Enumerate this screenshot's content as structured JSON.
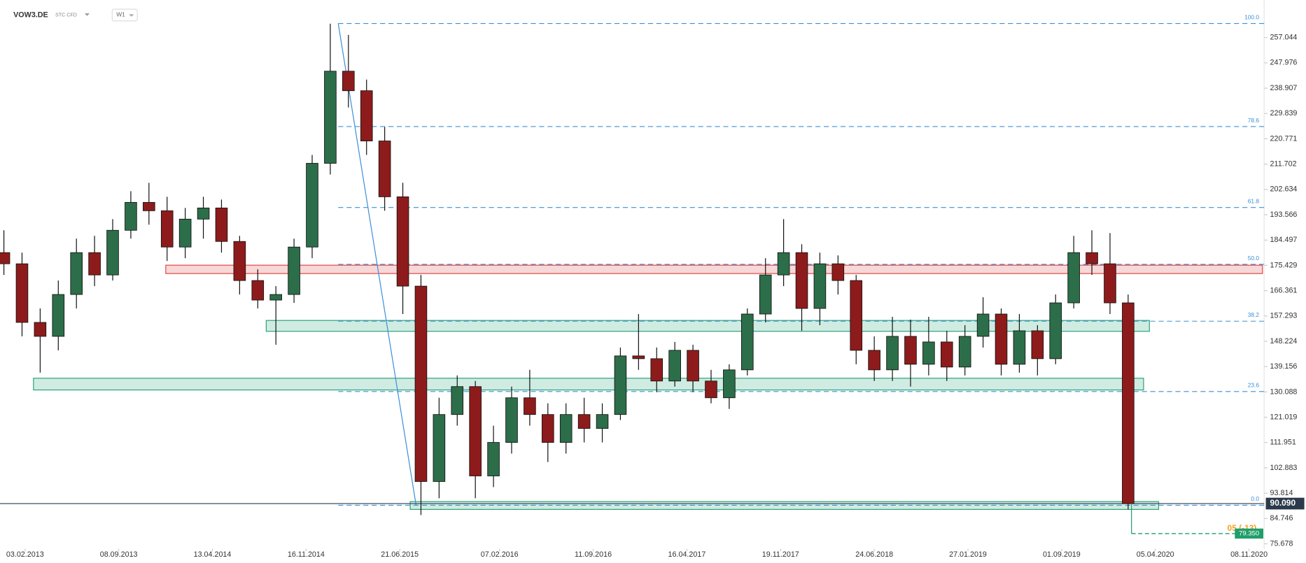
{
  "chart_data": {
    "type": "candlestick",
    "title": "VOW3.DE",
    "subtitle": "STC CFD",
    "timeframe": "W1",
    "x": [
      "16.12.2012",
      "27.01.2013",
      "10.03.2013",
      "21.04.2013",
      "02.06.2013",
      "14.07.2013",
      "25.08.2013",
      "06.10.2013",
      "17.11.2013",
      "29.12.2013",
      "09.02.2014",
      "23.03.2014",
      "04.05.2014",
      "15.06.2014",
      "27.07.2014",
      "07.09.2014",
      "19.10.2014",
      "30.11.2014",
      "11.01.2015",
      "22.02.2015",
      "05.04.2015",
      "17.05.2015",
      "28.06.2015",
      "09.08.2015",
      "20.09.2015",
      "01.11.2015",
      "13.12.2015",
      "24.01.2016",
      "06.03.2016",
      "17.04.2016",
      "29.05.2016",
      "10.07.2016",
      "21.08.2016",
      "02.10.2016",
      "13.11.2016",
      "25.12.2016",
      "05.02.2017",
      "19.03.2017",
      "30.04.2017",
      "11.06.2017",
      "23.07.2017",
      "03.09.2017",
      "15.10.2017",
      "26.11.2017",
      "07.01.2018",
      "18.02.2018",
      "01.04.2018",
      "13.05.2018",
      "24.06.2018",
      "05.08.2018",
      "16.09.2018",
      "28.10.2018",
      "09.12.2018",
      "20.01.2019",
      "03.03.2019",
      "14.04.2019",
      "26.05.2019",
      "07.07.2019",
      "18.08.2019",
      "29.09.2019",
      "10.11.2019",
      "22.12.2019",
      "02.02.2020"
    ],
    "open": [
      180,
      176,
      155,
      150,
      165,
      180,
      172,
      188,
      198,
      195,
      182,
      192,
      196,
      184,
      170,
      163,
      165,
      182,
      212,
      245,
      238,
      220,
      200,
      168,
      98,
      122,
      132,
      100,
      112,
      128,
      122,
      112,
      122,
      117,
      122,
      143,
      142,
      134,
      145,
      134,
      128,
      138,
      158,
      172,
      180,
      160,
      176,
      170,
      145,
      138,
      150,
      140,
      148,
      139,
      150,
      158,
      140,
      152,
      142,
      162,
      180,
      176,
      162
    ],
    "high": [
      188,
      180,
      160,
      170,
      185,
      186,
      192,
      202,
      205,
      200,
      196,
      200,
      199,
      186,
      174,
      168,
      185,
      215,
      262,
      258,
      242,
      225,
      205,
      172,
      128,
      136,
      134,
      118,
      132,
      138,
      126,
      126,
      128,
      126,
      146,
      158,
      146,
      148,
      147,
      138,
      140,
      160,
      178,
      192,
      183,
      180,
      179,
      172,
      150,
      157,
      156,
      157,
      152,
      154,
      164,
      160,
      158,
      154,
      165,
      186,
      188,
      187,
      165
    ],
    "low": [
      172,
      150,
      137,
      145,
      160,
      168,
      170,
      185,
      190,
      177,
      178,
      185,
      180,
      165,
      160,
      147,
      162,
      178,
      208,
      232,
      215,
      195,
      158,
      86,
      92,
      118,
      92,
      96,
      108,
      118,
      105,
      108,
      112,
      112,
      120,
      138,
      130,
      132,
      130,
      126,
      124,
      136,
      155,
      168,
      152,
      154,
      165,
      140,
      134,
      134,
      132,
      136,
      134,
      136,
      146,
      136,
      137,
      136,
      140,
      160,
      172,
      158,
      88
    ],
    "close": [
      176,
      155,
      150,
      165,
      180,
      172,
      188,
      198,
      195,
      182,
      192,
      196,
      184,
      170,
      163,
      165,
      182,
      212,
      245,
      238,
      220,
      200,
      168,
      98,
      122,
      132,
      100,
      112,
      128,
      122,
      112,
      122,
      117,
      122,
      143,
      142,
      134,
      145,
      134,
      128,
      138,
      158,
      172,
      180,
      160,
      176,
      170,
      145,
      138,
      150,
      140,
      148,
      139,
      150,
      158,
      140,
      152,
      142,
      162,
      180,
      176,
      162,
      90.09
    ],
    "up_color": "#2c6e49",
    "down_color": "#8e1b1b",
    "xlim": [
      "07.12.2012",
      "13.12.2020"
    ],
    "xticks": [
      "03.02.2013",
      "08.09.2013",
      "13.04.2014",
      "16.11.2014",
      "21.06.2015",
      "07.02.2016",
      "11.09.2016",
      "16.04.2017",
      "19.11.2017",
      "24.06.2018",
      "27.01.2019",
      "01.09.2019",
      "05.04.2020",
      "08.11.2020"
    ],
    "ylim": [
      73.9,
      270.5
    ],
    "yticks": [
      257.044,
      247.976,
      238.907,
      229.839,
      220.771,
      211.702,
      202.634,
      193.566,
      184.497,
      175.429,
      166.361,
      157.293,
      148.224,
      139.156,
      130.088,
      121.019,
      111.951,
      102.883,
      93.814,
      84.746,
      75.678
    ],
    "grid": false,
    "fib": {
      "high": 262.1,
      "low": 89.5,
      "color": "#3a8fd8",
      "levels": [
        {
          "value": 100,
          "label": "100.0"
        },
        {
          "value": 78.6,
          "label": "78.6"
        },
        {
          "value": 61.8,
          "label": "61.8"
        },
        {
          "value": 50,
          "label": "50.0"
        },
        {
          "value": 38.2,
          "label": "38.2"
        },
        {
          "value": 23.6,
          "label": "23.6"
        },
        {
          "value": 0,
          "label": "0.0"
        }
      ]
    },
    "zones": [
      {
        "low": 172.5,
        "high": 175.5,
        "color": "#e04848"
      },
      {
        "low": 151.8,
        "high": 155.7,
        "color": "#2aa37a"
      },
      {
        "low": 130.8,
        "high": 135.0,
        "color": "#2aa37a"
      },
      {
        "low": 88.0,
        "high": 90.8,
        "color": "#2aa37a"
      }
    ],
    "last_price": {
      "value": 90.09,
      "label": "90.090"
    },
    "target": {
      "value": 79.35,
      "label": "79.350",
      "color": "#1f9e6a"
    },
    "target_note": "05 (-13)"
  }
}
